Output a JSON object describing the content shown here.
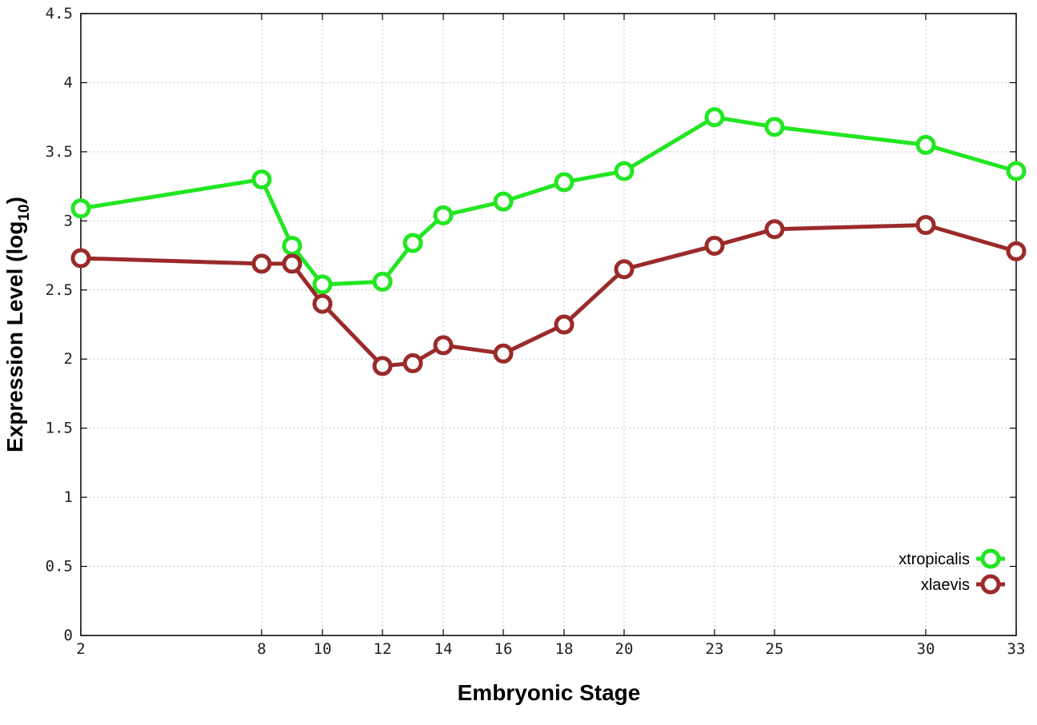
{
  "chart_data": {
    "type": "line",
    "title": "",
    "xlabel": "Embryonic Stage",
    "ylabel": "Expression Level (log",
    "ylabel_subscript": "10",
    "ylabel_suffix": ")",
    "x_ticks": [
      2,
      8,
      10,
      12,
      14,
      16,
      18,
      20,
      23,
      25,
      30,
      33
    ],
    "x_category_positions": [
      2,
      8,
      9,
      10,
      12,
      13,
      14,
      16,
      18,
      20,
      23,
      25,
      30,
      33
    ],
    "y_ticks": [
      "0",
      "0.5",
      "1",
      "1.5",
      "2",
      "2.5",
      "3",
      "3.5",
      "4",
      "4.5"
    ],
    "ylim": [
      0,
      4.5
    ],
    "grid": true,
    "legend_position": "bottom-right",
    "series": [
      {
        "name": "xtropicalis",
        "color": "#22e622",
        "x": [
          2,
          8,
          9,
          10,
          12,
          13,
          14,
          16,
          18,
          20,
          23,
          25,
          30,
          33
        ],
        "values": [
          3.09,
          3.3,
          2.82,
          2.54,
          2.56,
          2.84,
          3.04,
          3.14,
          3.28,
          3.36,
          3.75,
          3.68,
          3.55,
          3.36
        ]
      },
      {
        "name": "xlaevis",
        "color": "#9b2a2a",
        "x": [
          2,
          8,
          9,
          10,
          12,
          13,
          14,
          16,
          18,
          20,
          23,
          25,
          30,
          33
        ],
        "values": [
          2.73,
          2.69,
          2.69,
          2.4,
          1.95,
          1.97,
          2.1,
          2.04,
          2.25,
          2.65,
          2.82,
          2.94,
          2.97,
          2.78
        ]
      }
    ]
  }
}
